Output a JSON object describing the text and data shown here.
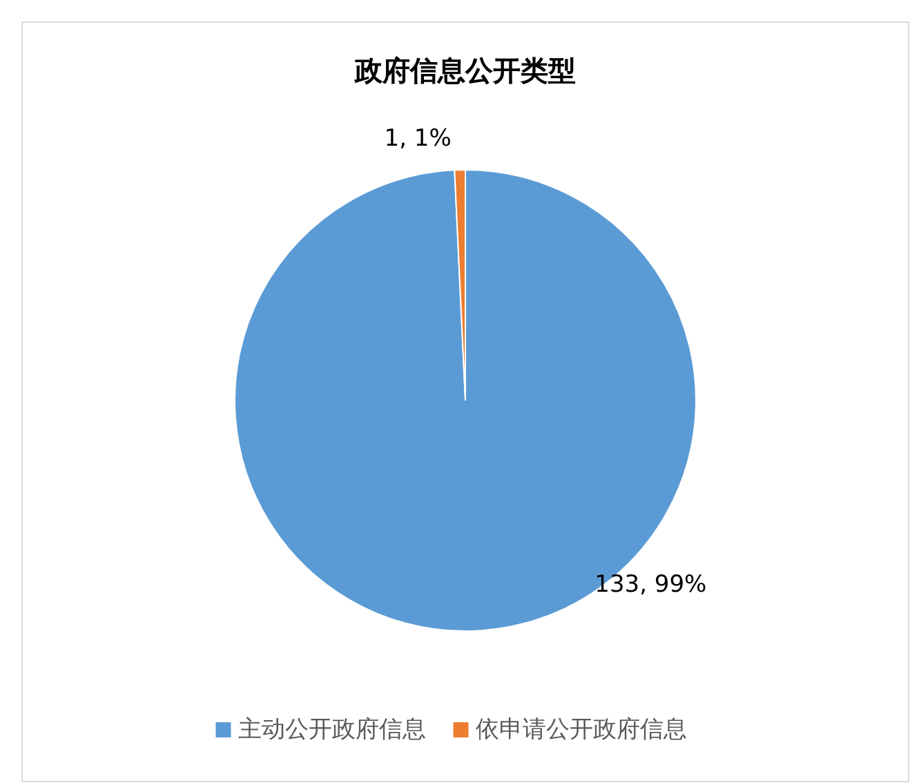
{
  "chart_data": {
    "type": "pie",
    "title": "政府信息公开类型",
    "categories": [
      "主动公开政府信息",
      "依申请公开政府信息"
    ],
    "values": [
      133,
      1
    ],
    "colors": [
      "#5b9bd5",
      "#ed7d31"
    ],
    "value_labels": [
      "133, 99%",
      "1, 1%"
    ],
    "legend": "bottom"
  }
}
